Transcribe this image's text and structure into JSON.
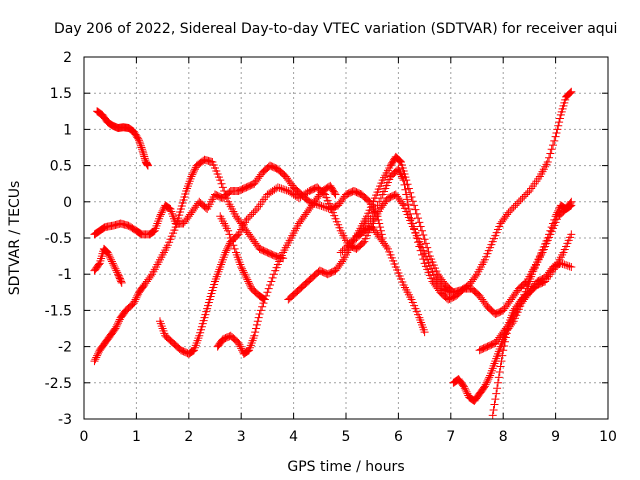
{
  "chart_data": {
    "type": "scatter",
    "title": "Day 206 of 2022, Sidereal Day-to-day VTEC variation (SDTVAR) for receiver aqui",
    "xlabel": "GPS time / hours",
    "ylabel": "SDTVAR / TECUs",
    "xlim": [
      0,
      10
    ],
    "ylim": [
      -3,
      2
    ],
    "xticks": [
      0,
      1,
      2,
      3,
      4,
      5,
      6,
      7,
      8,
      9,
      10
    ],
    "yticks": [
      -3,
      -2.5,
      -2,
      -1.5,
      -1,
      -0.5,
      0,
      0.5,
      1,
      1.5,
      2
    ],
    "xtick_labels": [
      "0",
      "1",
      "2",
      "3",
      "4",
      "5",
      "6",
      "7",
      "8",
      "9",
      "10"
    ],
    "ytick_labels": [
      "-3",
      "-2.5",
      "-2",
      "-1.5",
      "-1",
      "-0.5",
      "0",
      "0.5",
      "1",
      "1.5",
      "2"
    ],
    "grid": true,
    "legend": "none",
    "marker": "+",
    "color": "#ff0000",
    "series": [
      {
        "points": [
          [
            0.25,
            1.25
          ],
          [
            0.35,
            1.2
          ],
          [
            0.45,
            1.1
          ],
          [
            0.55,
            1.05
          ],
          [
            0.65,
            1.02
          ],
          [
            0.75,
            1.03
          ],
          [
            0.85,
            1.02
          ],
          [
            0.95,
            0.97
          ],
          [
            1.05,
            0.85
          ],
          [
            1.12,
            0.7
          ],
          [
            1.18,
            0.55
          ],
          [
            1.22,
            0.5
          ]
        ]
      },
      {
        "points": [
          [
            0.2,
            -0.95
          ],
          [
            0.3,
            -0.85
          ],
          [
            0.38,
            -0.65
          ],
          [
            0.45,
            -0.7
          ],
          [
            0.55,
            -0.85
          ],
          [
            0.65,
            -1.0
          ],
          [
            0.72,
            -1.12
          ]
        ]
      },
      {
        "points": [
          [
            0.2,
            -0.45
          ],
          [
            0.3,
            -0.4
          ],
          [
            0.4,
            -0.35
          ],
          [
            0.55,
            -0.33
          ],
          [
            0.7,
            -0.3
          ],
          [
            0.85,
            -0.33
          ],
          [
            1.0,
            -0.4
          ],
          [
            1.1,
            -0.45
          ],
          [
            1.25,
            -0.45
          ],
          [
            1.35,
            -0.4
          ],
          [
            1.45,
            -0.2
          ],
          [
            1.55,
            -0.05
          ],
          [
            1.65,
            -0.1
          ],
          [
            1.75,
            -0.3
          ],
          [
            1.9,
            -0.3
          ],
          [
            2.05,
            -0.15
          ],
          [
            2.2,
            0.0
          ],
          [
            2.35,
            -0.1
          ],
          [
            2.5,
            0.1
          ],
          [
            2.65,
            0.05
          ],
          [
            2.8,
            0.15
          ],
          [
            2.95,
            0.15
          ],
          [
            3.1,
            0.2
          ],
          [
            3.25,
            0.25
          ],
          [
            3.4,
            0.4
          ],
          [
            3.55,
            0.5
          ],
          [
            3.7,
            0.45
          ],
          [
            3.85,
            0.35
          ],
          [
            4.0,
            0.2
          ],
          [
            4.15,
            0.1
          ],
          [
            4.3,
            0.0
          ],
          [
            4.5,
            -0.05
          ],
          [
            4.7,
            -0.1
          ],
          [
            4.85,
            -0.05
          ],
          [
            5.0,
            0.1
          ],
          [
            5.15,
            0.15
          ],
          [
            5.3,
            0.1
          ],
          [
            5.45,
            0.0
          ],
          [
            5.6,
            -0.2
          ],
          [
            5.7,
            -0.5
          ]
        ]
      },
      {
        "points": [
          [
            0.2,
            -2.2
          ],
          [
            0.3,
            -2.05
          ],
          [
            0.4,
            -1.95
          ],
          [
            0.5,
            -1.85
          ],
          [
            0.6,
            -1.75
          ],
          [
            0.7,
            -1.6
          ],
          [
            0.8,
            -1.5
          ],
          [
            0.95,
            -1.4
          ],
          [
            1.05,
            -1.25
          ],
          [
            1.15,
            -1.15
          ],
          [
            1.3,
            -1.0
          ],
          [
            1.45,
            -0.8
          ],
          [
            1.6,
            -0.6
          ],
          [
            1.75,
            -0.35
          ],
          [
            1.85,
            -0.1
          ],
          [
            1.95,
            0.15
          ],
          [
            2.05,
            0.35
          ],
          [
            2.15,
            0.5
          ],
          [
            2.3,
            0.58
          ],
          [
            2.45,
            0.55
          ],
          [
            2.6,
            0.3
          ],
          [
            2.75,
            0.0
          ],
          [
            2.9,
            -0.2
          ],
          [
            3.05,
            -0.35
          ],
          [
            3.2,
            -0.5
          ],
          [
            3.35,
            -0.65
          ],
          [
            3.5,
            -0.7
          ],
          [
            3.65,
            -0.75
          ],
          [
            3.8,
            -0.78
          ]
        ]
      },
      {
        "points": [
          [
            1.45,
            -1.65
          ],
          [
            1.55,
            -1.85
          ],
          [
            1.7,
            -1.95
          ],
          [
            1.85,
            -2.05
          ],
          [
            2.0,
            -2.1
          ],
          [
            2.1,
            -2.05
          ],
          [
            2.2,
            -1.85
          ],
          [
            2.3,
            -1.6
          ],
          [
            2.4,
            -1.35
          ],
          [
            2.5,
            -1.1
          ],
          [
            2.6,
            -0.9
          ],
          [
            2.7,
            -0.7
          ],
          [
            2.8,
            -0.55
          ],
          [
            2.95,
            -0.45
          ],
          [
            3.1,
            -0.25
          ],
          [
            3.3,
            -0.1
          ],
          [
            3.5,
            0.1
          ],
          [
            3.7,
            0.2
          ],
          [
            3.9,
            0.15
          ],
          [
            4.1,
            0.05
          ],
          [
            4.3,
            0.15
          ],
          [
            4.45,
            0.2
          ],
          [
            4.6,
            0.1
          ],
          [
            4.75,
            -0.15
          ],
          [
            4.9,
            -0.4
          ],
          [
            5.05,
            -0.6
          ],
          [
            5.2,
            -0.65
          ],
          [
            5.35,
            -0.55
          ],
          [
            5.5,
            -0.3
          ],
          [
            5.65,
            -0.1
          ],
          [
            5.8,
            0.05
          ],
          [
            5.95,
            0.1
          ],
          [
            6.1,
            -0.05
          ],
          [
            6.25,
            -0.3
          ],
          [
            6.4,
            -0.55
          ],
          [
            6.55,
            -0.8
          ],
          [
            6.7,
            -1.05
          ],
          [
            6.85,
            -1.2
          ],
          [
            7.0,
            -1.25
          ]
        ]
      },
      {
        "points": [
          [
            2.6,
            -0.2
          ],
          [
            2.75,
            -0.4
          ],
          [
            2.9,
            -0.7
          ],
          [
            3.0,
            -0.9
          ],
          [
            3.1,
            -1.05
          ],
          [
            3.2,
            -1.2
          ],
          [
            3.35,
            -1.3
          ],
          [
            3.45,
            -1.35
          ]
        ]
      },
      {
        "points": [
          [
            2.55,
            -2.0
          ],
          [
            2.65,
            -1.9
          ],
          [
            2.8,
            -1.85
          ],
          [
            2.95,
            -1.95
          ],
          [
            3.05,
            -2.1
          ],
          [
            3.15,
            -2.05
          ],
          [
            3.25,
            -1.85
          ],
          [
            3.35,
            -1.55
          ],
          [
            3.5,
            -1.25
          ],
          [
            3.65,
            -0.95
          ],
          [
            3.8,
            -0.7
          ],
          [
            3.95,
            -0.5
          ],
          [
            4.1,
            -0.3
          ],
          [
            4.25,
            -0.15
          ],
          [
            4.4,
            0.0
          ],
          [
            4.55,
            0.15
          ],
          [
            4.7,
            0.22
          ],
          [
            4.8,
            0.1
          ]
        ]
      },
      {
        "points": [
          [
            3.9,
            -1.35
          ],
          [
            4.05,
            -1.25
          ],
          [
            4.2,
            -1.15
          ],
          [
            4.35,
            -1.05
          ],
          [
            4.5,
            -0.95
          ],
          [
            4.65,
            -1.0
          ],
          [
            4.8,
            -0.95
          ],
          [
            4.95,
            -0.8
          ],
          [
            5.1,
            -0.6
          ],
          [
            5.25,
            -0.4
          ],
          [
            5.4,
            -0.2
          ],
          [
            5.55,
            0.05
          ],
          [
            5.7,
            0.3
          ],
          [
            5.85,
            0.5
          ],
          [
            5.95,
            0.62
          ],
          [
            6.05,
            0.55
          ],
          [
            6.15,
            0.3
          ],
          [
            6.3,
            -0.05
          ],
          [
            6.45,
            -0.4
          ],
          [
            6.6,
            -0.75
          ],
          [
            6.75,
            -1.0
          ],
          [
            6.9,
            -1.15
          ],
          [
            7.05,
            -1.25
          ],
          [
            7.2,
            -1.22
          ],
          [
            7.35,
            -1.15
          ],
          [
            7.5,
            -1.0
          ],
          [
            7.65,
            -0.8
          ],
          [
            7.8,
            -0.55
          ],
          [
            7.95,
            -0.3
          ],
          [
            8.1,
            -0.15
          ],
          [
            8.3,
            0.0
          ],
          [
            8.5,
            0.15
          ],
          [
            8.7,
            0.35
          ],
          [
            8.85,
            0.55
          ],
          [
            9.0,
            0.9
          ],
          [
            9.1,
            1.2
          ],
          [
            9.2,
            1.45
          ],
          [
            9.3,
            1.52
          ]
        ]
      },
      {
        "points": [
          [
            4.9,
            -0.7
          ],
          [
            5.1,
            -0.55
          ],
          [
            5.3,
            -0.4
          ],
          [
            5.5,
            -0.2
          ],
          [
            5.7,
            0.1
          ],
          [
            5.85,
            0.35
          ],
          [
            6.0,
            0.45
          ],
          [
            6.1,
            0.3
          ],
          [
            6.2,
            -0.1
          ],
          [
            6.35,
            -0.5
          ],
          [
            6.5,
            -0.85
          ],
          [
            6.65,
            -1.1
          ],
          [
            6.8,
            -1.25
          ],
          [
            6.95,
            -1.35
          ],
          [
            7.1,
            -1.3
          ],
          [
            7.25,
            -1.2
          ],
          [
            7.4,
            -1.2
          ],
          [
            7.55,
            -1.3
          ],
          [
            7.7,
            -1.45
          ],
          [
            7.85,
            -1.55
          ],
          [
            8.0,
            -1.5
          ],
          [
            8.15,
            -1.35
          ],
          [
            8.3,
            -1.2
          ],
          [
            8.45,
            -1.1
          ],
          [
            8.6,
            -0.9
          ],
          [
            8.75,
            -0.7
          ],
          [
            8.9,
            -0.45
          ],
          [
            9.05,
            -0.2
          ],
          [
            9.2,
            -0.1
          ],
          [
            9.3,
            0.0
          ]
        ]
      },
      {
        "points": [
          [
            5.2,
            -0.5
          ],
          [
            5.35,
            -0.4
          ],
          [
            5.5,
            -0.35
          ],
          [
            5.65,
            -0.5
          ],
          [
            5.8,
            -0.65
          ],
          [
            5.95,
            -0.9
          ],
          [
            6.1,
            -1.15
          ],
          [
            6.25,
            -1.35
          ],
          [
            6.4,
            -1.6
          ],
          [
            6.5,
            -1.8
          ]
        ]
      },
      {
        "points": [
          [
            7.05,
            -2.5
          ],
          [
            7.15,
            -2.45
          ],
          [
            7.25,
            -2.55
          ],
          [
            7.35,
            -2.7
          ],
          [
            7.45,
            -2.75
          ],
          [
            7.55,
            -2.65
          ],
          [
            7.65,
            -2.55
          ],
          [
            7.75,
            -2.4
          ],
          [
            7.85,
            -2.2
          ],
          [
            7.95,
            -2.0
          ],
          [
            8.05,
            -1.8
          ],
          [
            8.2,
            -1.65
          ],
          [
            8.35,
            -1.4
          ],
          [
            8.5,
            -1.25
          ],
          [
            8.65,
            -1.1
          ],
          [
            8.8,
            -1.05
          ],
          [
            8.95,
            -0.9
          ],
          [
            9.1,
            -0.85
          ],
          [
            9.3,
            -0.9
          ]
        ]
      },
      {
        "points": [
          [
            7.55,
            -2.05
          ],
          [
            7.7,
            -2.0
          ],
          [
            7.85,
            -1.95
          ],
          [
            8.0,
            -1.8
          ],
          [
            8.15,
            -1.65
          ],
          [
            8.3,
            -1.45
          ],
          [
            8.45,
            -1.2
          ],
          [
            8.55,
            -1.0
          ],
          [
            8.7,
            -0.75
          ],
          [
            8.85,
            -0.5
          ],
          [
            9.0,
            -0.2
          ],
          [
            9.1,
            -0.05
          ],
          [
            9.2,
            -0.1
          ],
          [
            9.3,
            -0.05
          ]
        ]
      },
      {
        "points": [
          [
            7.8,
            -2.95
          ],
          [
            7.9,
            -2.5
          ],
          [
            8.0,
            -2.05
          ],
          [
            8.1,
            -1.7
          ],
          [
            8.2,
            -1.5
          ],
          [
            8.35,
            -1.35
          ],
          [
            8.5,
            -1.25
          ],
          [
            8.65,
            -1.15
          ],
          [
            8.8,
            -1.1
          ],
          [
            9.0,
            -0.9
          ],
          [
            9.15,
            -0.7
          ],
          [
            9.3,
            -0.45
          ]
        ]
      }
    ]
  }
}
